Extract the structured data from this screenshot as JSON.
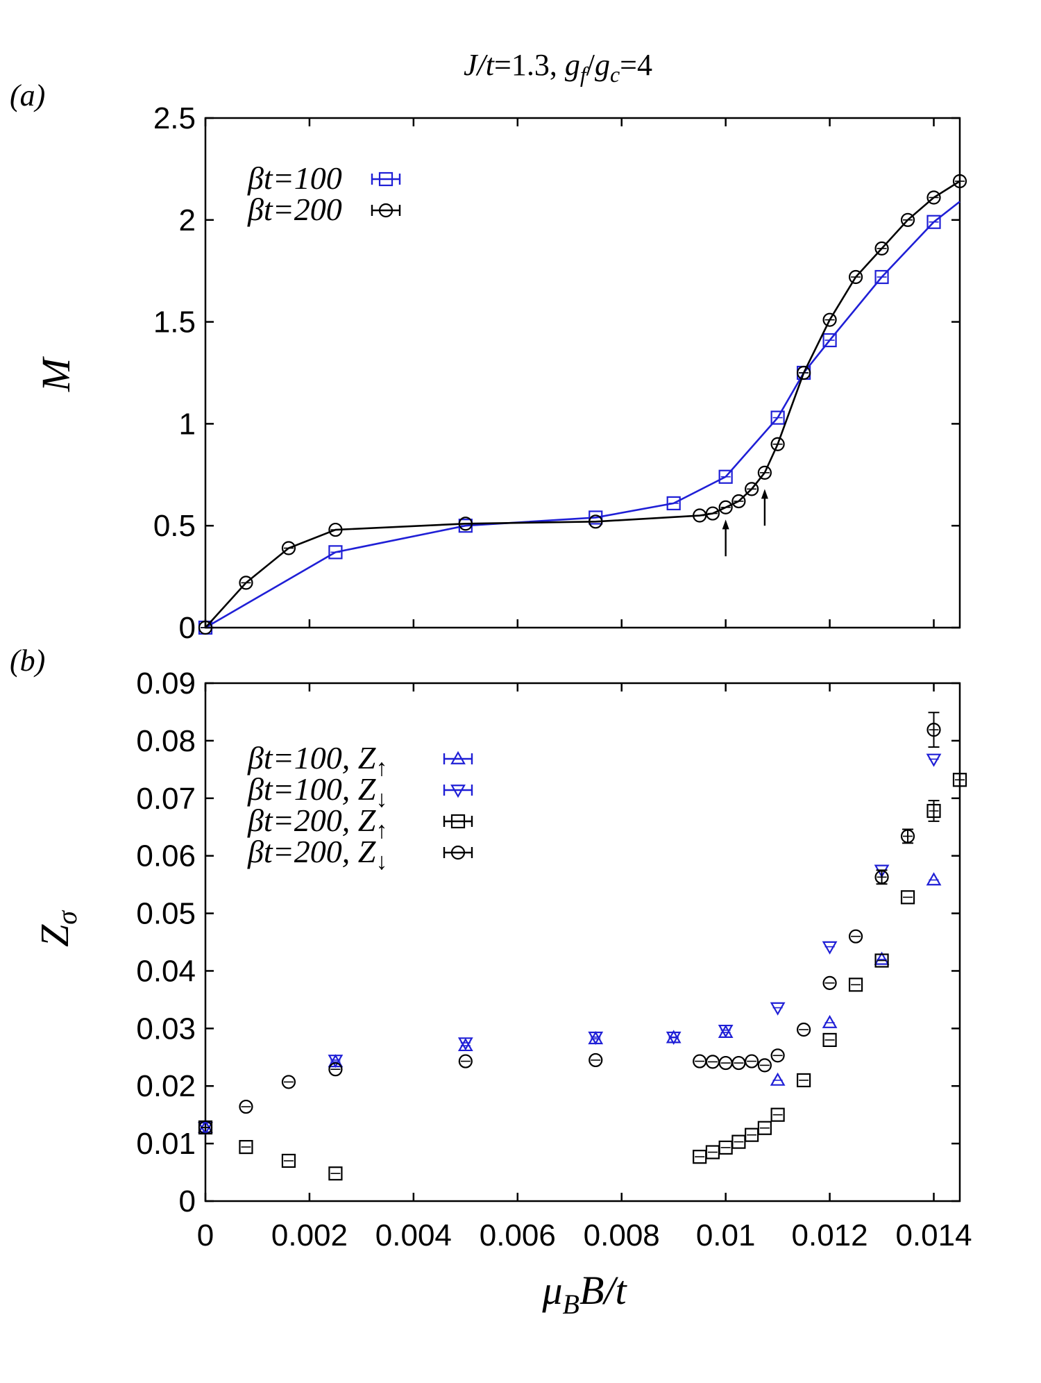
{
  "figure": {
    "title": "J/t=1.3, g_f/g_c=4",
    "title_parts": {
      "a": "J/",
      "b": "t",
      "c": "=1.3, ",
      "d": "g",
      "e": "f",
      "f": "/",
      "g": "g",
      "h": "c",
      "i": "=4"
    },
    "colors": {
      "blue": "#1f1fd6",
      "black": "#000000"
    }
  },
  "chart_data": [
    {
      "panel": "(a)",
      "type": "line",
      "ylabel": "M",
      "xlim": [
        0,
        0.0145
      ],
      "ylim": [
        0,
        2.5
      ],
      "x_ticks": [
        0,
        0.002,
        0.004,
        0.006,
        0.008,
        0.01,
        0.012,
        0.014
      ],
      "y_ticks": [
        "0",
        "0.5",
        "1",
        "1.5",
        "2",
        "2.5"
      ],
      "y_tick_values": [
        0,
        0.5,
        1,
        1.5,
        2,
        2.5
      ],
      "legend_position": "top-left",
      "series": [
        {
          "name": "βt=100",
          "legend": {
            "greek": "β",
            "it": "t",
            "rest": "=100"
          },
          "marker": "square",
          "color": "#1f1fd6",
          "connected": true,
          "x": [
            0,
            0.0025,
            0.005,
            0.0075,
            0.009,
            0.01,
            0.011,
            0.0115,
            0.012,
            0.013,
            0.014,
            0.0145
          ],
          "y": [
            0,
            0.37,
            0.5,
            0.54,
            0.61,
            0.74,
            1.03,
            1.25,
            1.41,
            1.72,
            1.99,
            2.09
          ],
          "marker_count": 11
        },
        {
          "name": "βt=200",
          "legend": {
            "greek": "β",
            "it": "t",
            "rest": "=200"
          },
          "marker": "circle",
          "color": "#000000",
          "connected": true,
          "x": [
            0,
            0.00078,
            0.0016,
            0.0025,
            0.005,
            0.0075,
            0.0095,
            0.00975,
            0.01,
            0.01025,
            0.0105,
            0.01075,
            0.011,
            0.0115,
            0.012,
            0.0125,
            0.013,
            0.0135,
            0.014,
            0.0145
          ],
          "y": [
            0,
            0.22,
            0.39,
            0.48,
            0.51,
            0.52,
            0.55,
            0.56,
            0.59,
            0.62,
            0.68,
            0.76,
            0.9,
            1.25,
            1.51,
            1.72,
            1.86,
            2.0,
            2.11,
            2.19
          ]
        }
      ],
      "annotations": [
        {
          "type": "arrow",
          "x": 0.01,
          "y_from": 0.35,
          "y_to": 0.53
        },
        {
          "type": "arrow",
          "x": 0.01075,
          "y_from": 0.5,
          "y_to": 0.68
        }
      ]
    },
    {
      "panel": "(b)",
      "type": "scatter",
      "ylabel": "Zσ",
      "xlabel": "μB B/t",
      "xlim": [
        0,
        0.0145
      ],
      "ylim": [
        0,
        0.09
      ],
      "x_ticks": [
        "0",
        "0.002",
        "0.004",
        "0.006",
        "0.008",
        "0.01",
        "0.012",
        "0.014"
      ],
      "x_tick_values": [
        0,
        0.002,
        0.004,
        0.006,
        0.008,
        0.01,
        0.012,
        0.014
      ],
      "y_ticks": [
        "0",
        "0.01",
        "0.02",
        "0.03",
        "0.04",
        "0.05",
        "0.06",
        "0.07",
        "0.08",
        "0.09"
      ],
      "y_tick_values": [
        0,
        0.01,
        0.02,
        0.03,
        0.04,
        0.05,
        0.06,
        0.07,
        0.08,
        0.09
      ],
      "legend_position": "top-left",
      "series": [
        {
          "name": "βt=100, Z↑",
          "legend": {
            "greek": "β",
            "it": "t",
            "rest": "=100, ",
            "z": "Z",
            "arrow": "↑"
          },
          "marker": "triangle-up",
          "color": "#1f1fd6",
          "x": [
            0,
            0.0025,
            0.005,
            0.0075,
            0.009,
            0.01,
            0.011,
            0.012,
            0.013,
            0.014
          ],
          "y": [
            0.0128,
            0.0242,
            0.027,
            0.0282,
            0.0284,
            0.0293,
            0.021,
            0.031,
            0.042,
            0.0558
          ]
        },
        {
          "name": "βt=100, Z↓",
          "legend": {
            "greek": "β",
            "it": "t",
            "rest": "=100, ",
            "z": "Z",
            "arrow": "↓"
          },
          "marker": "triangle-down",
          "color": "#1f1fd6",
          "x": [
            0,
            0.0025,
            0.005,
            0.0075,
            0.009,
            0.01,
            0.011,
            0.012,
            0.013,
            0.014
          ],
          "y": [
            0.0128,
            0.0245,
            0.0275,
            0.0285,
            0.0285,
            0.0297,
            0.0336,
            0.0442,
            0.0575,
            0.0768
          ]
        },
        {
          "name": "βt=200, Z↑",
          "legend": {
            "greek": "β",
            "it": "t",
            "rest": "=200, ",
            "z": "Z",
            "arrow": "↑"
          },
          "marker": "square",
          "color": "#000000",
          "x": [
            0,
            0.00078,
            0.0016,
            0.0025,
            0.0095,
            0.00975,
            0.01,
            0.01025,
            0.0105,
            0.01075,
            0.011,
            0.0115,
            0.012,
            0.0125,
            0.013,
            0.0135,
            0.014,
            0.0145
          ],
          "y": [
            0.0128,
            0.0094,
            0.007,
            0.0048,
            0.0077,
            0.0085,
            0.0093,
            0.0103,
            0.0115,
            0.0127,
            0.015,
            0.021,
            0.028,
            0.0376,
            0.0418,
            0.0528,
            0.0678,
            0.0732
          ],
          "err": [
            0.0005,
            0.0005,
            0.0005,
            0.0005,
            0.0005,
            0.0005,
            0.0005,
            0.0005,
            0.0005,
            0.0005,
            0.0005,
            0.0005,
            0.0005,
            0.0005,
            0.0005,
            0.0006,
            0.0018,
            0.0006
          ]
        },
        {
          "name": "βt=200, Z↓",
          "legend": {
            "greek": "β",
            "it": "t",
            "rest": "=200, ",
            "z": "Z",
            "arrow": "↓"
          },
          "marker": "circle",
          "color": "#000000",
          "x": [
            0,
            0.00078,
            0.0016,
            0.0025,
            0.005,
            0.0075,
            0.0095,
            0.00975,
            0.01,
            0.01025,
            0.0105,
            0.01075,
            0.011,
            0.0115,
            0.012,
            0.0125,
            0.013,
            0.0135,
            0.014
          ],
          "y": [
            0.0128,
            0.0164,
            0.0207,
            0.0229,
            0.0243,
            0.0245,
            0.0243,
            0.0242,
            0.024,
            0.024,
            0.0243,
            0.0236,
            0.0253,
            0.0298,
            0.0379,
            0.046,
            0.0563,
            0.0634,
            0.0819
          ],
          "err": [
            0.0005,
            0.0005,
            0.0005,
            0.0007,
            0.0005,
            0.0005,
            0.0005,
            0.0005,
            0.0005,
            0.0005,
            0.0005,
            0.0008,
            0.0006,
            0.0007,
            0.0007,
            0.0007,
            0.0012,
            0.0012,
            0.003
          ]
        }
      ]
    }
  ],
  "panel_labels": {
    "a": "(a)",
    "b": "(b)"
  },
  "xlabel_parts": {
    "mu": "μ",
    "sub": "B",
    "rest": "B/t"
  },
  "ylabel_parts": {
    "z": "Z",
    "sub": "σ",
    "m": "M"
  }
}
